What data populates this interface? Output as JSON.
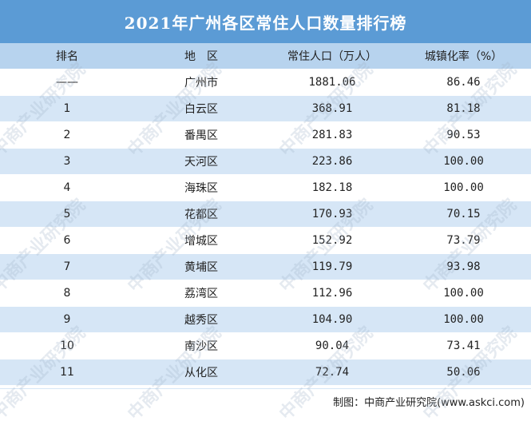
{
  "title": "2021年广州各区常住人口数量排行榜",
  "headers": {
    "rank": "排名",
    "area": "地　区",
    "population": "常住人口（万人）",
    "urbanization": "城镇化率（%）"
  },
  "rows": [
    {
      "rank": "——",
      "area": "广州市",
      "population": "1881.06",
      "urbanization": "86.46"
    },
    {
      "rank": "1",
      "area": "白云区",
      "population": "368.91",
      "urbanization": "81.18"
    },
    {
      "rank": "2",
      "area": "番禺区",
      "population": "281.83",
      "urbanization": "90.53"
    },
    {
      "rank": "3",
      "area": "天河区",
      "population": "223.86",
      "urbanization": "100.00"
    },
    {
      "rank": "4",
      "area": "海珠区",
      "population": "182.18",
      "urbanization": "100.00"
    },
    {
      "rank": "5",
      "area": "花都区",
      "population": "170.93",
      "urbanization": "70.15"
    },
    {
      "rank": "6",
      "area": "增城区",
      "population": "152.92",
      "urbanization": "73.79"
    },
    {
      "rank": "7",
      "area": "黄埔区",
      "population": "119.79",
      "urbanization": "93.98"
    },
    {
      "rank": "8",
      "area": "荔湾区",
      "population": "112.96",
      "urbanization": "100.00"
    },
    {
      "rank": "9",
      "area": "越秀区",
      "population": "104.90",
      "urbanization": "100.00"
    },
    {
      "rank": "10",
      "area": "南沙区",
      "population": "90.04",
      "urbanization": "73.41"
    },
    {
      "rank": "11",
      "area": "从化区",
      "population": "72.74",
      "urbanization": "50.06"
    }
  ],
  "source": "制图：中商产业研究院(www.askci.com)",
  "watermark": "中商产业研究院",
  "colors": {
    "title_bg": "#5b9bd5",
    "header_bg": "#b7d3ee",
    "stripe": "#d6e6f6"
  }
}
